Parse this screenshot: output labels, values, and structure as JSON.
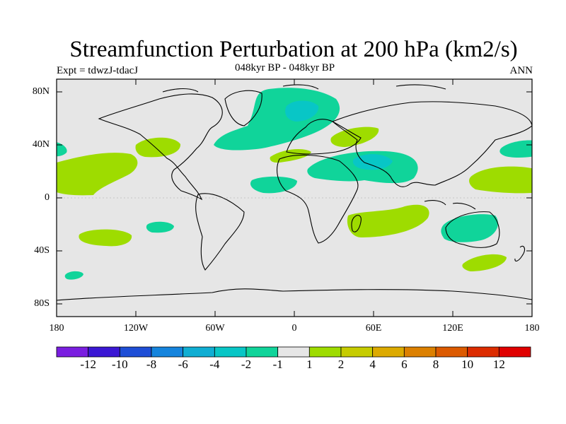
{
  "title": "Streamfunction Perturbation at 200 hPa (km2/s)",
  "left_string": "Expt = tdwzJ-tdacJ",
  "center_string": "048kyr BP - 048kyr BP",
  "right_string": "ANN",
  "map": {
    "projection": "cylindrical equidistant",
    "lon_range": [
      -180,
      180
    ],
    "lat_range": [
      -90,
      90
    ],
    "background_color": "#e6e6e6",
    "lat_ticks": [
      "80N",
      "40N",
      "0",
      "40S",
      "80S"
    ],
    "lon_ticks": [
      "180",
      "120W",
      "60W",
      "0",
      "60E",
      "120E",
      "180"
    ]
  },
  "colorbar": {
    "labels": [
      "-12",
      "-10",
      "-8",
      "-6",
      "-4",
      "-2",
      "-1",
      "1",
      "2",
      "4",
      "6",
      "8",
      "10",
      "12"
    ],
    "colors": [
      "#7a1ee0",
      "#3b17d4",
      "#1e4ed6",
      "#1584dd",
      "#10aed3",
      "#08c6c6",
      "#10d49a",
      "#e6e6e6",
      "#9edc00",
      "#c6cc00",
      "#dcaa00",
      "#dc8000",
      "#dc5a00",
      "#dc2c00",
      "#e00000"
    ]
  }
}
